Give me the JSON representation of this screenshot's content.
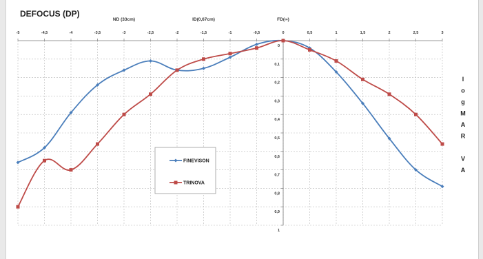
{
  "chart_data": {
    "type": "line",
    "title": "DEFOCUS (DP)",
    "top_labels": [
      {
        "text": "ND (33cm)",
        "x": -3
      },
      {
        "text": "ID(0,67cm)",
        "x": -1.5
      },
      {
        "text": "FD(∞)",
        "x": 0
      }
    ],
    "ylabel_letters": [
      "l",
      "o",
      "g",
      "M",
      "A",
      "R",
      "",
      "V",
      "A"
    ],
    "x_ticks": [
      "-5",
      "-4,5",
      "-4",
      "-3,5",
      "-3",
      "-2,5",
      "-2",
      "-1,5",
      "-1",
      "-0,5",
      "0",
      "0,5",
      "1",
      "1,5",
      "2",
      "2,5",
      "3"
    ],
    "y_ticks": [
      "0",
      "0,1",
      "0,2",
      "0,3",
      "0,4",
      "0,5",
      "0,6",
      "0,7",
      "0,8",
      "0,9",
      "1"
    ],
    "xlim": [
      -5,
      3
    ],
    "ylim": [
      0,
      1
    ],
    "y_inverted": true,
    "grid": true,
    "legend_position": "center",
    "x": [
      -5,
      -4.5,
      -4,
      -3.5,
      -3,
      -2.5,
      -2,
      -1.5,
      -1,
      -0.5,
      0,
      0.5,
      1,
      1.5,
      2,
      2.5,
      3
    ],
    "series": [
      {
        "name": "FINEVISON",
        "color": "#4a7ebb",
        "marker": "diamond",
        "values": [
          0.66,
          0.58,
          0.39,
          0.24,
          0.16,
          0.11,
          0.16,
          0.15,
          0.09,
          0.02,
          0.0,
          0.04,
          0.17,
          0.34,
          0.53,
          0.7,
          0.79
        ]
      },
      {
        "name": "TRINOVA",
        "color": "#be4b48",
        "marker": "square",
        "values": [
          0.9,
          0.65,
          0.7,
          0.56,
          0.4,
          0.29,
          0.16,
          0.1,
          0.07,
          0.04,
          0.0,
          0.05,
          0.11,
          0.21,
          0.29,
          0.4,
          0.56
        ]
      }
    ]
  }
}
